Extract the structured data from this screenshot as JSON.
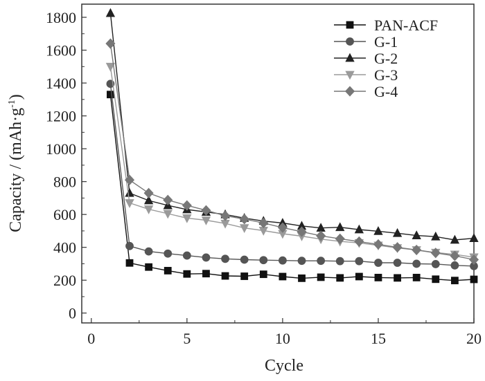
{
  "chart_data": {
    "type": "line",
    "title": "",
    "xlabel": "Cycle",
    "ylabel_main": "Capacity / (mAh·g",
    "ylabel_sup": "-1",
    "ylabel_close": ")",
    "xlim": [
      -0.5,
      20
    ],
    "ylim": [
      -60,
      1880
    ],
    "xticks": [
      0,
      5,
      10,
      15,
      20
    ],
    "yticks": [
      0,
      200,
      400,
      600,
      800,
      1000,
      1200,
      1400,
      1600,
      1800
    ],
    "grid": false,
    "legend_position": "top-right",
    "x": [
      1,
      2,
      3,
      4,
      5,
      6,
      7,
      8,
      9,
      10,
      11,
      12,
      13,
      14,
      15,
      16,
      17,
      18,
      19,
      20
    ],
    "series": [
      {
        "name": "PAN-ACF",
        "marker": "square",
        "color": "#111111",
        "values": [
          1330,
          305,
          280,
          258,
          238,
          240,
          226,
          224,
          236,
          222,
          212,
          218,
          214,
          222,
          216,
          214,
          216,
          206,
          198,
          205
        ]
      },
      {
        "name": "G-1",
        "marker": "circle",
        "color": "#555555",
        "values": [
          1395,
          408,
          375,
          362,
          350,
          338,
          330,
          325,
          322,
          320,
          318,
          318,
          316,
          316,
          306,
          306,
          300,
          298,
          290,
          286
        ]
      },
      {
        "name": "G-2",
        "marker": "triangle-up",
        "color": "#222222",
        "values": [
          1825,
          730,
          685,
          655,
          630,
          615,
          600,
          578,
          560,
          548,
          530,
          518,
          522,
          508,
          498,
          486,
          472,
          465,
          445,
          455
        ]
      },
      {
        "name": "G-3",
        "marker": "triangle-down",
        "color": "#9a9a9a",
        "values": [
          1500,
          670,
          632,
          605,
          578,
          565,
          545,
          518,
          502,
          483,
          468,
          450,
          436,
          427,
          412,
          396,
          384,
          368,
          357,
          340
        ]
      },
      {
        "name": "G-4",
        "marker": "diamond",
        "color": "#777777",
        "values": [
          1640,
          810,
          730,
          688,
          655,
          625,
          592,
          572,
          548,
          520,
          495,
          470,
          452,
          435,
          418,
          400,
          384,
          366,
          348,
          325
        ]
      }
    ]
  }
}
